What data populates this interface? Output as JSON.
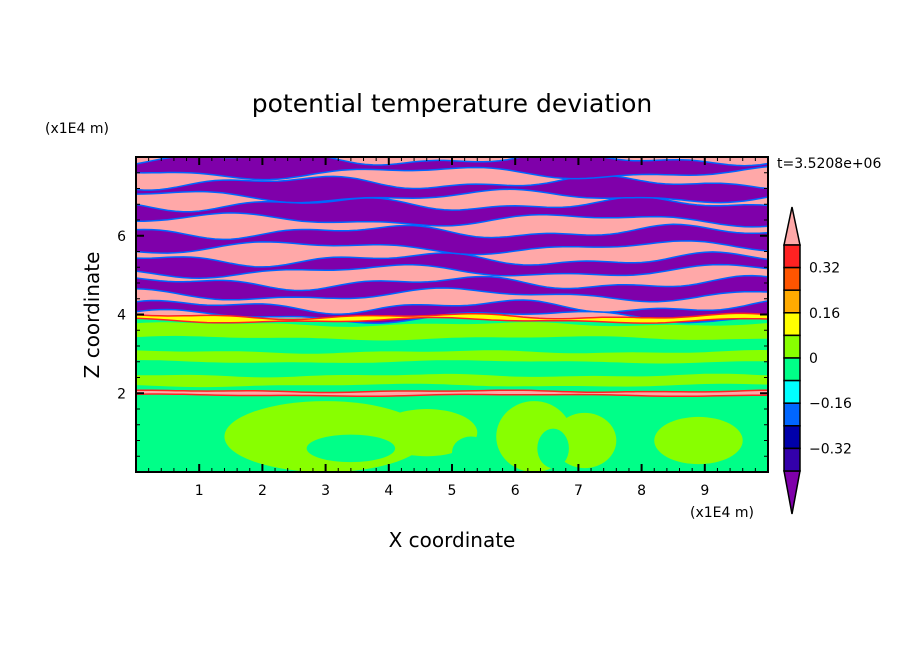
{
  "chart_data": {
    "type": "heatmap",
    "subtype": "filled-contour",
    "title": "potential temperature deviation",
    "xlabel": "X coordinate",
    "ylabel": "Z coordinate",
    "x_unit_label": "(x1E4 m)",
    "y_unit_label": "(x1E4 m)",
    "time_label": "t=3.5208e+06",
    "xlim": [
      0,
      10
    ],
    "ylim": [
      0,
      8
    ],
    "xticks": [
      1,
      2,
      3,
      4,
      5,
      6,
      7,
      8,
      9
    ],
    "xtick_labels": [
      "1",
      "2",
      "3",
      "4",
      "5",
      "6",
      "7",
      "8",
      "9"
    ],
    "yticks": [
      2,
      4,
      6
    ],
    "ytick_labels": [
      "2",
      "4",
      "6"
    ],
    "colorbar": {
      "levels": [
        -0.4,
        -0.32,
        -0.24,
        -0.16,
        -0.08,
        0,
        0.08,
        0.16,
        0.24,
        0.32,
        0.4
      ],
      "tick_values": [
        0.32,
        0.16,
        0,
        -0.16,
        -0.32
      ],
      "tick_labels": [
        "0.32",
        "0.16",
        "0",
        "−0.16",
        "−0.32"
      ],
      "over_color": "#FFA8A8",
      "under_color": "#7F00AA",
      "colors_top_to_bottom": [
        "#FF2222",
        "#FF5500",
        "#FFAA00",
        "#FFFF00",
        "#88FF00",
        "#00FF88",
        "#00FFFF",
        "#0066FF",
        "#0000AA",
        "#3300AA"
      ]
    }
  }
}
